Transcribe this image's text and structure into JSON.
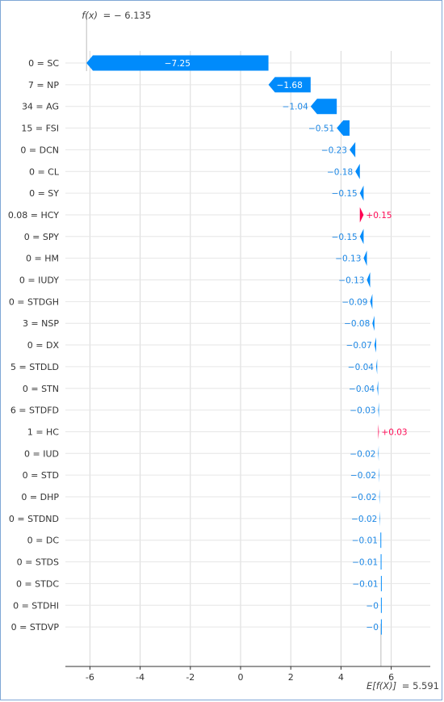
{
  "chart_data": {
    "type": "waterfall",
    "fx_label": "f(x)",
    "fx_value": "= − 6.135",
    "ex_label": "E[f(X)]",
    "ex_value": "= 5.591",
    "base_value": 5.591,
    "final_value": -6.135,
    "xlim": [
      -6.3,
      7.2
    ],
    "xticks": [
      -6,
      -4,
      -2,
      0,
      2,
      4,
      6
    ],
    "xtick_labels": [
      "-6",
      "-4",
      "-2",
      "0",
      "2",
      "4",
      "6"
    ],
    "colors": {
      "negative": "#008bfb",
      "positive": "#ff0051",
      "negative_text": "#1e88e5",
      "positive_text": "#ff0d57",
      "grid": "#d9d9d9",
      "axis": "#333333"
    },
    "features": [
      {
        "label": "0 = SC",
        "value": -7.25,
        "text": "−7.25"
      },
      {
        "label": "7 = NP",
        "value": -1.68,
        "text": "−1.68"
      },
      {
        "label": "34 = AG",
        "value": -1.04,
        "text": "−1.04"
      },
      {
        "label": "15 = FSI",
        "value": -0.51,
        "text": "−0.51"
      },
      {
        "label": "0 = DCN",
        "value": -0.23,
        "text": "−0.23"
      },
      {
        "label": "0 = CL",
        "value": -0.18,
        "text": "−0.18"
      },
      {
        "label": "0 = SY",
        "value": -0.15,
        "text": "−0.15"
      },
      {
        "label": "0.08 = HCY",
        "value": 0.15,
        "text": "+0.15"
      },
      {
        "label": "0 = SPY",
        "value": -0.15,
        "text": "−0.15"
      },
      {
        "label": "0 = HM",
        "value": -0.13,
        "text": "−0.13"
      },
      {
        "label": "0 = IUDY",
        "value": -0.13,
        "text": "−0.13"
      },
      {
        "label": "0 = STDGH",
        "value": -0.09,
        "text": "−0.09"
      },
      {
        "label": "3 = NSP",
        "value": -0.08,
        "text": "−0.08"
      },
      {
        "label": "0 = DX",
        "value": -0.07,
        "text": "−0.07"
      },
      {
        "label": "5 = STDLD",
        "value": -0.04,
        "text": "−0.04"
      },
      {
        "label": "0 = STN",
        "value": -0.04,
        "text": "−0.04"
      },
      {
        "label": "6 = STDFD",
        "value": -0.03,
        "text": "−0.03"
      },
      {
        "label": "1 = HC",
        "value": 0.03,
        "text": "+0.03"
      },
      {
        "label": "0 = IUD",
        "value": -0.02,
        "text": "−0.02"
      },
      {
        "label": "0 = STD",
        "value": -0.02,
        "text": "−0.02"
      },
      {
        "label": "0 = DHP",
        "value": -0.02,
        "text": "−0.02"
      },
      {
        "label": "0 = STDND",
        "value": -0.02,
        "text": "−0.02"
      },
      {
        "label": "0 = DC",
        "value": -0.01,
        "text": "−0.01"
      },
      {
        "label": "0 = STDS",
        "value": -0.01,
        "text": "−0.01"
      },
      {
        "label": "0 = STDC",
        "value": -0.01,
        "text": "−0.01"
      },
      {
        "label": "0 = STDHI",
        "value": 0.0,
        "text": "−0"
      },
      {
        "label": "0 = STDVP",
        "value": 0.0,
        "text": "−0"
      }
    ]
  }
}
